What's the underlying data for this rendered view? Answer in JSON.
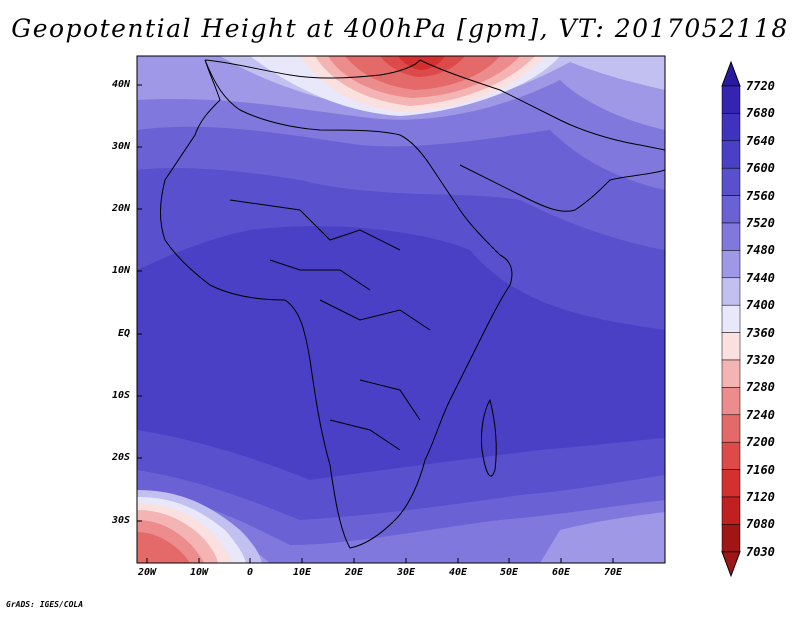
{
  "title": "Geopotential Height at 400hPa [gpm], VT: 2017052118",
  "credit": "GrADS: IGES/COLA",
  "map": {
    "lat_labels": [
      "40N",
      "30N",
      "20N",
      "10N",
      "EQ",
      "10S",
      "20S",
      "30S"
    ],
    "lon_labels": [
      "20W",
      "10W",
      "0",
      "10E",
      "20E",
      "30E",
      "40E",
      "50E",
      "60E",
      "70E"
    ]
  },
  "colorbar": {
    "levels": [
      "7720",
      "7680",
      "7640",
      "7600",
      "7560",
      "7520",
      "7480",
      "7440",
      "7400",
      "7360",
      "7320",
      "7280",
      "7240",
      "7200",
      "7160",
      "7120",
      "7080",
      "7030"
    ],
    "colors": [
      "#2a1aa0",
      "#3524b0",
      "#3f33bd",
      "#4a40c6",
      "#5850cc",
      "#6a62d4",
      "#8078dc",
      "#9e98e6",
      "#c2c0f0",
      "#e8e8fa",
      "#fbe0e0",
      "#f4b4b4",
      "#ec8c8c",
      "#e46a6a",
      "#dc4a4a",
      "#d43030",
      "#c02020",
      "#a01616"
    ]
  }
}
